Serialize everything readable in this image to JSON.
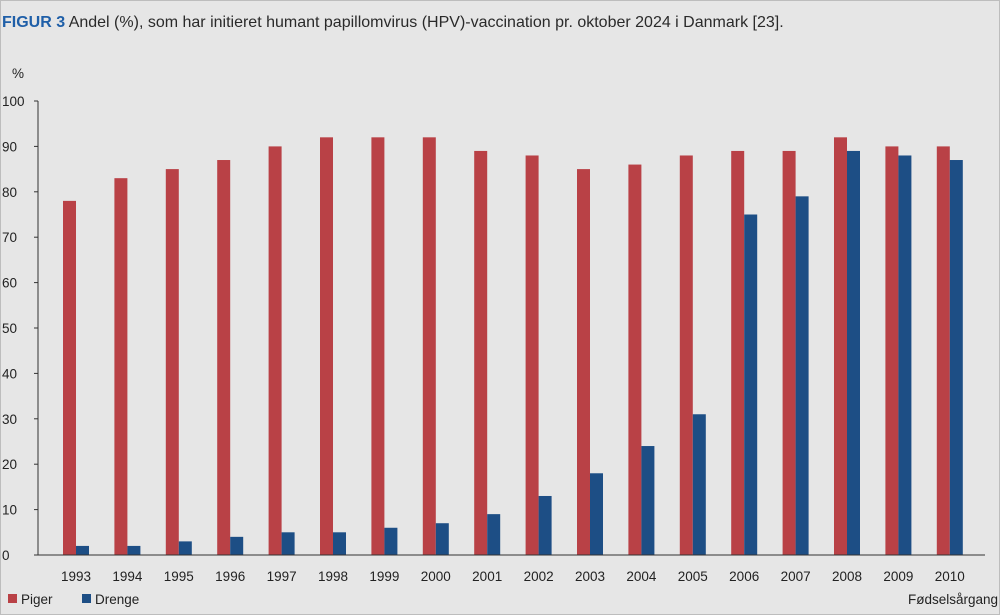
{
  "figure": {
    "label": "FIGUR 3",
    "caption": "Andel (%), som har initieret humant papillomvirus (HPV)-vaccination pr. oktober 2024 i Danmark [23]."
  },
  "colors": {
    "piger": "#b94146",
    "drenge": "#1d4e85"
  },
  "chart_data": {
    "type": "bar",
    "title": "Andel (%), som har initieret humant papillomvirus (HPV)-vaccination pr. oktober 2024 i Danmark [23].",
    "xlabel": "Fødselsårgang",
    "ylabel": "%",
    "ylim": [
      0,
      100
    ],
    "yticks": [
      0,
      10,
      20,
      30,
      40,
      50,
      60,
      70,
      80,
      90,
      100
    ],
    "grid": false,
    "legend": "bottom-left",
    "categories": [
      "1993",
      "1994",
      "1995",
      "1996",
      "1997",
      "1998",
      "1999",
      "2000",
      "2001",
      "2002",
      "2003",
      "2004",
      "2005",
      "2006",
      "2007",
      "2008",
      "2009",
      "2010"
    ],
    "series": [
      {
        "name": "Piger",
        "values": [
          78,
          83,
          85,
          87,
          90,
          92,
          92,
          92,
          89,
          88,
          85,
          86,
          88,
          89,
          89,
          92,
          90,
          90
        ]
      },
      {
        "name": "Drenge",
        "values": [
          2,
          2,
          3,
          4,
          5,
          5,
          6,
          7,
          9,
          13,
          18,
          24,
          31,
          75,
          79,
          89,
          88,
          87
        ]
      }
    ]
  }
}
